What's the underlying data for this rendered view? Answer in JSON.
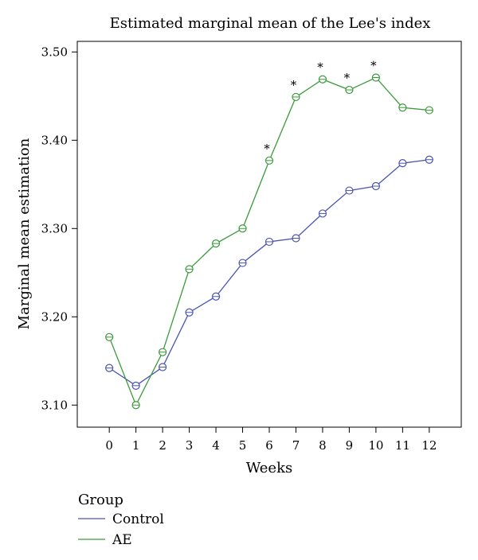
{
  "chart_data": {
    "type": "line",
    "title": "Estimated marginal mean of the Lee's index",
    "xlabel": "Weeks",
    "ylabel": "Marginal mean estimation",
    "x": [
      0,
      1,
      2,
      3,
      4,
      5,
      6,
      7,
      8,
      9,
      10,
      11,
      12
    ],
    "x_tick_labels": [
      "0",
      "1",
      "2",
      "3",
      "4",
      "5",
      "6",
      "7",
      "8",
      "9",
      "10",
      "11",
      "12"
    ],
    "y_ticks": [
      3.1,
      3.2,
      3.3,
      3.4,
      3.5
    ],
    "y_tick_labels": [
      "3.10",
      "3.20",
      "3.30",
      "3.40",
      "3.50"
    ],
    "xlim": [
      -1.2,
      13.2
    ],
    "ylim": [
      3.075,
      3.512
    ],
    "grid": false,
    "legend_title": "Group",
    "legend_position": "bottom-left",
    "series": [
      {
        "name": "Control",
        "color": "#4a55b0",
        "values": [
          3.142,
          3.122,
          3.143,
          3.205,
          3.223,
          3.261,
          3.285,
          3.289,
          3.317,
          3.343,
          3.348,
          3.374,
          3.378
        ]
      },
      {
        "name": "AE",
        "color": "#3a9a3a",
        "values": [
          3.177,
          3.1,
          3.16,
          3.254,
          3.283,
          3.3,
          3.377,
          3.449,
          3.469,
          3.457,
          3.471,
          3.437,
          3.434
        ]
      }
    ],
    "annotations": [
      {
        "x": 6,
        "text": "*"
      },
      {
        "x": 7,
        "text": "*"
      },
      {
        "x": 8,
        "text": "*"
      },
      {
        "x": 9,
        "text": "*"
      },
      {
        "x": 10,
        "text": "*"
      }
    ]
  }
}
